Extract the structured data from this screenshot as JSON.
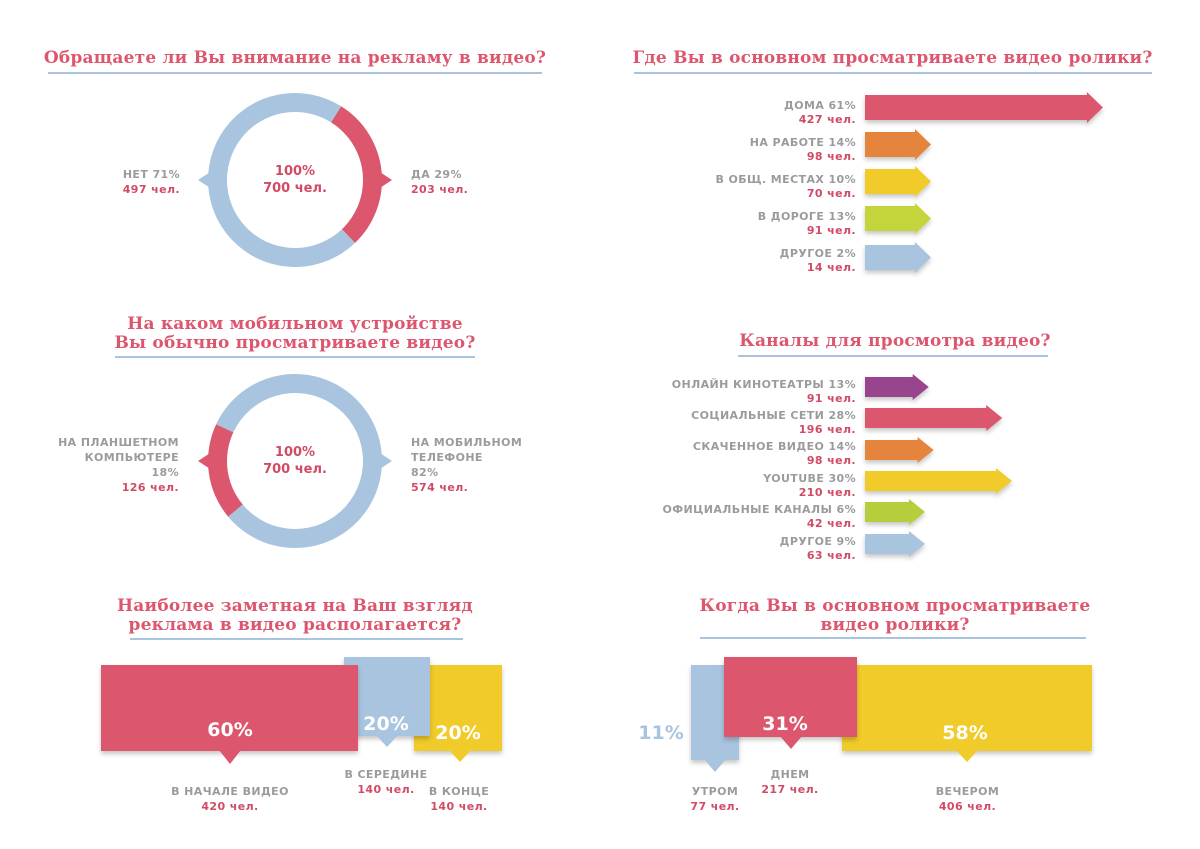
{
  "chart_data": [
    {
      "type": "pie",
      "title": "Обращаете ли Вы внимание на рекламу в видео?",
      "center": {
        "pct": "100%",
        "count": "700 чел."
      },
      "slices": [
        {
          "label": "НЕТ 71%",
          "count": "497 чел.",
          "value": 71,
          "color": "#a9c4df"
        },
        {
          "label": "ДА 29%",
          "count": "203 чел.",
          "value": 29,
          "color": "#dc566e"
        }
      ]
    },
    {
      "type": "pie",
      "title": [
        "На каком мобильном устройстве",
        "Вы обычно просматриваете видео?"
      ],
      "center": {
        "pct": "100%",
        "count": "700 чел."
      },
      "slices": [
        {
          "label": [
            "НА ПЛАНШЕТНОМ",
            "КОМПЬЮТЕРЕ",
            "18%"
          ],
          "count": "126 чел.",
          "value": 18,
          "color": "#dc566e"
        },
        {
          "label": [
            "НА МОБИЛЬНОМ",
            "ТЕЛЕФОНЕ",
            "82%"
          ],
          "count": "574 чел.",
          "value": 82,
          "color": "#a9c4df"
        }
      ]
    },
    {
      "type": "bar",
      "title": "Где Вы в основном просматриваете видео ролики?",
      "bars": [
        {
          "label": "ДОМА 61%",
          "count": "427 чел.",
          "value": 61,
          "color": "#dc566e"
        },
        {
          "label": "НА РАБОТЕ 14%",
          "count": "98 чел.",
          "value": 14,
          "color": "#e5843c"
        },
        {
          "label": "В ОБЩ. МЕСТАХ 10%",
          "count": "70 чел.",
          "value": 10,
          "color": "#f1cb2b"
        },
        {
          "label": "В ДОРОГЕ 13%",
          "count": "91 чел.",
          "value": 13,
          "color": "#c3d53a"
        },
        {
          "label": "ДРУГОЕ 2%",
          "count": "14 чел.",
          "value": 2,
          "color": "#a9c4df"
        }
      ]
    },
    {
      "type": "bar",
      "title": "Каналы для просмотра видео?",
      "bars": [
        {
          "label": "ОНЛАЙН КИНОТЕАТРЫ 13%",
          "count": "91 чел.",
          "value": 13,
          "color": "#98458e"
        },
        {
          "label": "СОЦИАЛЬНЫЕ СЕТИ 28%",
          "count": "196 чел.",
          "value": 28,
          "color": "#dc566e"
        },
        {
          "label": "СКАЧЕННОЕ ВИДЕО 14%",
          "count": "98 чел.",
          "value": 14,
          "color": "#e5843c"
        },
        {
          "label": "YOUTUBE 30%",
          "count": "210 чел.",
          "value": 30,
          "color": "#f1cb2b"
        },
        {
          "label": "ОФИЦИАЛЬНЫЕ КАНАЛЫ 6%",
          "count": "42 чел.",
          "value": 6,
          "color": "#b4cf3a"
        },
        {
          "label": "ДРУГОЕ 9%",
          "count": "63 чел.",
          "value": 9,
          "color": "#a9c4df"
        }
      ]
    },
    {
      "type": "bar",
      "title": [
        "Наиболее заметная на Ваш взгляд",
        "реклама в видео располагается?"
      ],
      "segments": [
        {
          "pct": "60%",
          "label": "В НАЧАЛЕ ВИДЕО",
          "count": "420 чел.",
          "value": 60,
          "color": "#dc566e"
        },
        {
          "pct": "20%",
          "label": "В СЕРЕДИНЕ",
          "count": "140 чел.",
          "value": 20,
          "color": "#a9c4df"
        },
        {
          "pct": "20%",
          "label": "В КОНЦЕ",
          "count": "140 чел.",
          "value": 20,
          "color": "#f1cb2b"
        }
      ]
    },
    {
      "type": "bar",
      "title": [
        "Когда Вы в основном просматриваете",
        "видео ролики?"
      ],
      "segments": [
        {
          "pct": "11%",
          "label": "УТРОМ",
          "count": "77 чел.",
          "value": 11,
          "color": "#a9c4df"
        },
        {
          "pct": "31%",
          "label": "ДНЕМ",
          "count": "217 чел.",
          "value": 31,
          "color": "#dc566e"
        },
        {
          "pct": "58%",
          "label": "ВЕЧЕРОМ",
          "count": "406 чел.",
          "value": 58,
          "color": "#f1cb2b"
        }
      ]
    }
  ]
}
